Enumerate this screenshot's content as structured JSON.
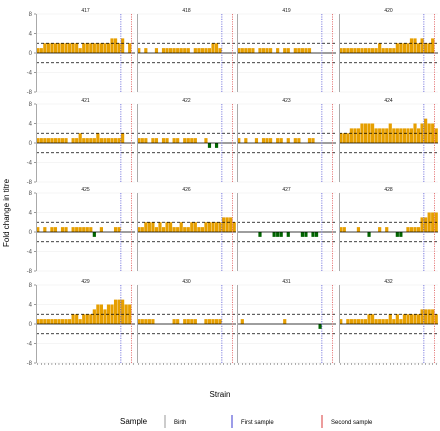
{
  "chart_data": {
    "type": "bar",
    "xlabel": "Strain",
    "ylabel": "Fold change in titre",
    "ylim": [
      -8,
      8
    ],
    "yticks": [
      -8,
      -4,
      0,
      4,
      8
    ],
    "threshold_lines": [
      2,
      -2
    ],
    "n_strains": 28,
    "strains": [
      "",
      "",
      "",
      "",
      "",
      "",
      "",
      "",
      "",
      "",
      "",
      "",
      "",
      "",
      "",
      "",
      "",
      "",
      "",
      "",
      "",
      "",
      "",
      "",
      "",
      "",
      "",
      ""
    ],
    "colors": {
      "positive": "#E69F00",
      "negative": "#006400",
      "birth": "#aaaaaa",
      "first": "#5a5ad8",
      "second": "#e05a5a"
    },
    "legend": {
      "title": "Sample",
      "items": [
        {
          "label": "Birth",
          "color": "#aaaaaa"
        },
        {
          "label": "First sample",
          "color": "#5a5ad8"
        },
        {
          "label": "Second sample",
          "color": "#e05a5a"
        }
      ]
    },
    "panels": [
      {
        "id": "417",
        "birth": 0,
        "first": 23,
        "second": 26,
        "values": [
          1,
          1,
          2,
          2,
          2,
          2,
          2,
          2,
          2,
          2,
          2,
          2,
          1,
          2,
          2,
          2,
          2,
          2,
          2,
          2,
          2,
          3,
          3,
          2,
          3,
          0,
          2,
          0
        ]
      },
      {
        "id": "418",
        "birth": 0,
        "first": 23,
        "second": 26,
        "values": [
          1,
          0,
          1,
          0,
          0,
          1,
          0,
          1,
          1,
          1,
          1,
          1,
          1,
          1,
          1,
          0,
          1,
          1,
          1,
          1,
          1,
          2,
          2,
          1,
          0,
          0,
          0,
          0
        ]
      },
      {
        "id": "419",
        "birth": 0,
        "first": 23,
        "second": 26,
        "values": [
          1,
          1,
          1,
          1,
          1,
          0,
          1,
          1,
          1,
          1,
          0,
          1,
          0,
          1,
          1,
          0,
          1,
          1,
          1,
          1,
          1,
          0,
          0,
          0,
          0,
          0,
          0,
          0
        ]
      },
      {
        "id": "420",
        "birth": 0,
        "first": 23,
        "second": 26,
        "values": [
          1,
          1,
          1,
          1,
          1,
          1,
          1,
          1,
          1,
          1,
          1,
          2,
          1,
          1,
          1,
          1,
          2,
          2,
          2,
          2,
          3,
          3,
          2,
          3,
          2,
          2,
          3,
          0
        ]
      },
      {
        "id": "421",
        "birth": 0,
        "first": 23,
        "second": 26,
        "values": [
          1,
          1,
          1,
          1,
          1,
          1,
          1,
          1,
          1,
          0,
          1,
          1,
          2,
          1,
          1,
          1,
          1,
          2,
          1,
          1,
          1,
          1,
          1,
          1,
          2,
          0,
          0,
          0
        ]
      },
      {
        "id": "422",
        "birth": 0,
        "first": 23,
        "second": 26,
        "values": [
          1,
          1,
          1,
          0,
          1,
          1,
          0,
          1,
          1,
          0,
          1,
          1,
          0,
          1,
          1,
          1,
          1,
          0,
          0,
          1,
          -1,
          0,
          -1,
          0,
          0,
          0,
          0,
          0
        ]
      },
      {
        "id": "423",
        "birth": 0,
        "first": 23,
        "second": 26,
        "values": [
          1,
          0,
          1,
          0,
          0,
          1,
          0,
          1,
          1,
          1,
          0,
          1,
          1,
          0,
          1,
          0,
          1,
          1,
          0,
          0,
          1,
          1,
          0,
          0,
          0,
          0,
          0,
          0
        ]
      },
      {
        "id": "424",
        "birth": 0,
        "first": 23,
        "second": 26,
        "values": [
          2,
          2,
          2,
          3,
          3,
          3,
          4,
          4,
          4,
          4,
          3,
          3,
          3,
          3,
          4,
          3,
          3,
          3,
          3,
          3,
          3,
          4,
          3,
          4,
          5,
          4,
          4,
          3
        ]
      },
      {
        "id": "425",
        "birth": 0,
        "first": 23,
        "second": 26,
        "values": [
          1,
          0,
          1,
          0,
          1,
          1,
          0,
          1,
          1,
          0,
          1,
          1,
          1,
          1,
          1,
          1,
          -1,
          0,
          1,
          0,
          0,
          0,
          1,
          1,
          0,
          0,
          0,
          0
        ]
      },
      {
        "id": "426",
        "birth": 0,
        "first": 23,
        "second": 26,
        "values": [
          1,
          1,
          2,
          2,
          2,
          1,
          2,
          1,
          2,
          2,
          1,
          1,
          2,
          1,
          1,
          2,
          2,
          1,
          1,
          2,
          2,
          2,
          2,
          2,
          3,
          3,
          3,
          2
        ]
      },
      {
        "id": "427",
        "birth": 0,
        "first": 23,
        "second": 26,
        "values": [
          0,
          0,
          0,
          0,
          0,
          0,
          -1,
          0,
          0,
          0,
          -1,
          -1,
          -1,
          0,
          -1,
          0,
          0,
          0,
          -1,
          -1,
          0,
          -1,
          -1,
          0,
          0,
          0,
          0,
          0
        ]
      },
      {
        "id": "428",
        "birth": 0,
        "first": 23,
        "second": 26,
        "values": [
          1,
          1,
          0,
          0,
          0,
          1,
          0,
          0,
          -1,
          0,
          0,
          1,
          0,
          1,
          0,
          0,
          -1,
          -1,
          0,
          1,
          1,
          1,
          1,
          3,
          3,
          4,
          4,
          4
        ]
      },
      {
        "id": "429",
        "birth": 0,
        "first": 23,
        "second": 26,
        "values": [
          1,
          1,
          1,
          1,
          1,
          1,
          1,
          1,
          1,
          1,
          2,
          2,
          1,
          2,
          2,
          2,
          3,
          4,
          4,
          3,
          4,
          4,
          5,
          5,
          5,
          4,
          4,
          0
        ]
      },
      {
        "id": "430",
        "birth": 0,
        "first": 23,
        "second": 26,
        "values": [
          1,
          1,
          1,
          1,
          1,
          0,
          0,
          0,
          0,
          0,
          1,
          1,
          0,
          1,
          1,
          1,
          1,
          0,
          0,
          1,
          1,
          1,
          1,
          1,
          0,
          0,
          0,
          0
        ]
      },
      {
        "id": "431",
        "birth": 0,
        "first": 23,
        "second": 26,
        "values": [
          0,
          1,
          0,
          0,
          0,
          0,
          0,
          0,
          0,
          0,
          0,
          0,
          0,
          1,
          0,
          0,
          0,
          0,
          0,
          0,
          0,
          0,
          0,
          -1,
          0,
          0,
          0,
          0
        ]
      },
      {
        "id": "432",
        "birth": 0,
        "first": 23,
        "second": 26,
        "values": [
          1,
          0,
          1,
          1,
          1,
          1,
          1,
          1,
          2,
          2,
          1,
          1,
          1,
          1,
          2,
          1,
          2,
          1,
          2,
          2,
          2,
          2,
          2,
          3,
          3,
          3,
          3,
          2
        ]
      }
    ]
  }
}
